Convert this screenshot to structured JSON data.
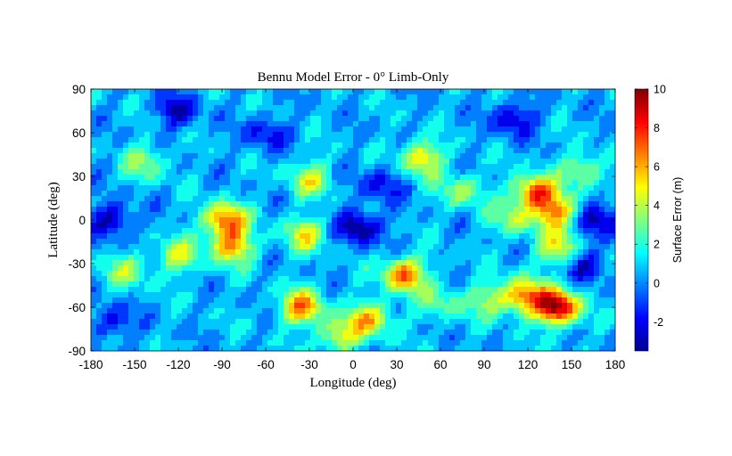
{
  "chart_data": {
    "type": "heatmap",
    "title": "Bennu Model Error - 0° Limb-Only",
    "xlabel": "Longitude (deg)",
    "ylabel": "Latitude (deg)",
    "xlim": [
      -180,
      180
    ],
    "ylim": [
      -90,
      90
    ],
    "xticks": [
      -180,
      -150,
      -120,
      -90,
      -60,
      -30,
      0,
      30,
      60,
      90,
      120,
      150,
      180
    ],
    "yticks": [
      90,
      60,
      30,
      0,
      -30,
      -60,
      -90
    ],
    "colorbar": {
      "label": "Surface Error (m)",
      "range": [
        -3.5,
        10
      ],
      "ticks": [
        10,
        8,
        6,
        4,
        2,
        0,
        -2
      ],
      "colormap": "jet"
    },
    "baseline_value": 0.6,
    "features": [
      {
        "lon": 140,
        "lat": -60,
        "value": 10
      },
      {
        "lon": 117,
        "lat": -52,
        "value": 6.5
      },
      {
        "lon": 125,
        "lat": 19,
        "value": 7.5
      },
      {
        "lon": 140,
        "lat": 5,
        "value": 6
      },
      {
        "lon": 142,
        "lat": -20,
        "value": 5
      },
      {
        "lon": 35,
        "lat": -38,
        "value": 7
      },
      {
        "lon": 47,
        "lat": 42,
        "value": 5.5
      },
      {
        "lon": -35,
        "lat": -60,
        "value": 6.5
      },
      {
        "lon": 12,
        "lat": -68,
        "value": 5.5
      },
      {
        "lon": -10,
        "lat": -80,
        "value": 4.5
      },
      {
        "lon": -88,
        "lat": 0,
        "value": 7
      },
      {
        "lon": -83,
        "lat": -18,
        "value": 6
      },
      {
        "lon": -33,
        "lat": -10,
        "value": 4.5
      },
      {
        "lon": -30,
        "lat": 28,
        "value": 4
      },
      {
        "lon": -120,
        "lat": -25,
        "value": 4
      },
      {
        "lon": -142,
        "lat": 40,
        "value": 3.5
      },
      {
        "lon": -155,
        "lat": -35,
        "value": 3.5
      },
      {
        "lon": 158,
        "lat": 35,
        "value": 4
      },
      {
        "lon": 75,
        "lat": 20,
        "value": 3.5
      },
      {
        "lon": 93,
        "lat": -55,
        "value": 3.5
      },
      {
        "lon": 60,
        "lat": -58,
        "value": 3
      },
      {
        "lon": 110,
        "lat": 0,
        "value": 3.5
      },
      {
        "lon": 5,
        "lat": -5,
        "value": -3.5
      },
      {
        "lon": -165,
        "lat": 0,
        "value": -3
      },
      {
        "lon": 170,
        "lat": 0,
        "value": -3
      },
      {
        "lon": -120,
        "lat": 75,
        "value": -2.5
      },
      {
        "lon": 110,
        "lat": 70,
        "value": -2.5
      },
      {
        "lon": 20,
        "lat": 25,
        "value": -2
      },
      {
        "lon": -60,
        "lat": 60,
        "value": -2
      },
      {
        "lon": 160,
        "lat": -30,
        "value": -2.5
      },
      {
        "lon": -165,
        "lat": -70,
        "value": -2
      }
    ]
  }
}
